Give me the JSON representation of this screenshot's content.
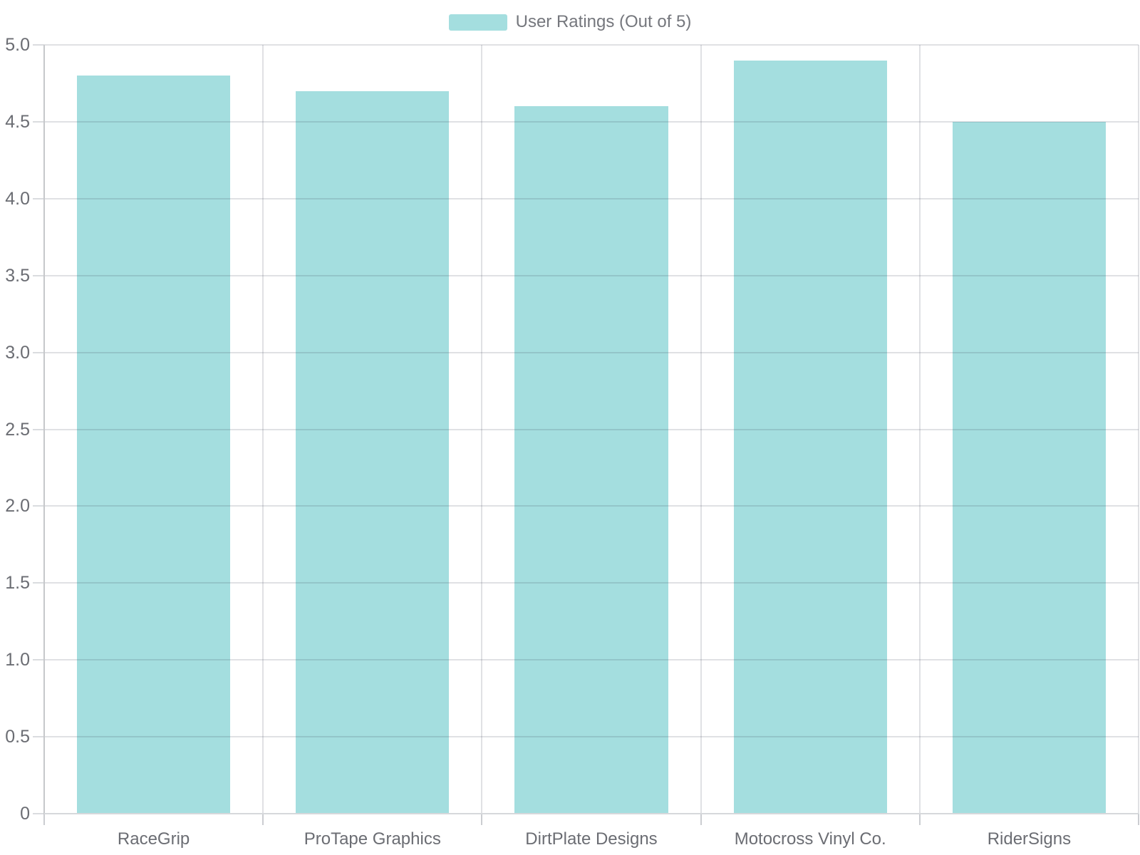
{
  "chart_data": {
    "type": "bar",
    "title": "",
    "legend": {
      "label": "User Ratings (Out of 5)",
      "position": "top-center"
    },
    "categories": [
      "RaceGrip",
      "ProTape Graphics",
      "DirtPlate Designs",
      "Motocross Vinyl Co.",
      "RiderSigns"
    ],
    "series": [
      {
        "name": "User Ratings (Out of 5)",
        "values": [
          4.8,
          4.7,
          4.6,
          4.9,
          4.5
        ]
      }
    ],
    "xlabel": "",
    "ylabel": "",
    "ylim": [
      0,
      5
    ],
    "y_tick_step": 0.5,
    "y_tick_labels": [
      "0",
      "0.5",
      "1.0",
      "1.5",
      "2.0",
      "2.5",
      "3.0",
      "3.5",
      "4.0",
      "4.5",
      "5.0"
    ],
    "grid": true,
    "bar_width_ratio": 0.7,
    "colors": {
      "bar": "#A4DEDF",
      "grid_line": "rgba(60,70,85,0.16)",
      "axis_line_y": "#C6C8CB",
      "axis_line_x": "#D6D8DB",
      "tick_y": "#DADCDF",
      "tick_x": "#CBCDD1",
      "axis_label_text": "#6B6D73",
      "legend_text": "#75777D",
      "background": "#FFFFFF"
    }
  }
}
